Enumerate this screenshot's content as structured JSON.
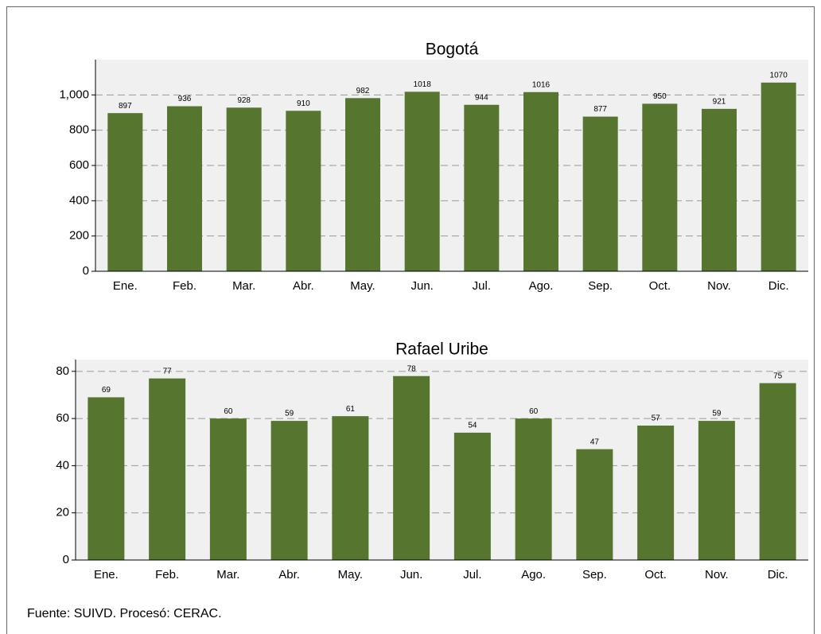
{
  "chart_data": [
    {
      "type": "bar",
      "title": "Bogotá",
      "categories": [
        "Ene.",
        "Feb.",
        "Mar.",
        "Abr.",
        "May.",
        "Jun.",
        "Jul.",
        "Ago.",
        "Sep.",
        "Oct.",
        "Nov.",
        "Dic."
      ],
      "values": [
        897,
        936,
        928,
        910,
        982,
        1018,
        944,
        1016,
        877,
        950,
        921,
        1070
      ],
      "color": "#56762f",
      "ylim": [
        0,
        1200
      ],
      "yticks": [
        0,
        200,
        400,
        600,
        800,
        {
          "value": 1000,
          "label": "1,000"
        }
      ],
      "grid": true
    },
    {
      "type": "bar",
      "title": "Rafael Uribe",
      "categories": [
        "Ene.",
        "Feb.",
        "Mar.",
        "Abr.",
        "May.",
        "Jun.",
        "Jul.",
        "Ago.",
        "Sep.",
        "Oct.",
        "Nov.",
        "Dic."
      ],
      "values": [
        69,
        77,
        60,
        59,
        61,
        78,
        54,
        60,
        47,
        57,
        59,
        75
      ],
      "color": "#56762f",
      "ylim": [
        0,
        85
      ],
      "yticks": [
        0,
        20,
        40,
        60,
        80
      ],
      "grid": true
    }
  ],
  "source": "Fuente: SUIVD. Procesó: CERAC."
}
